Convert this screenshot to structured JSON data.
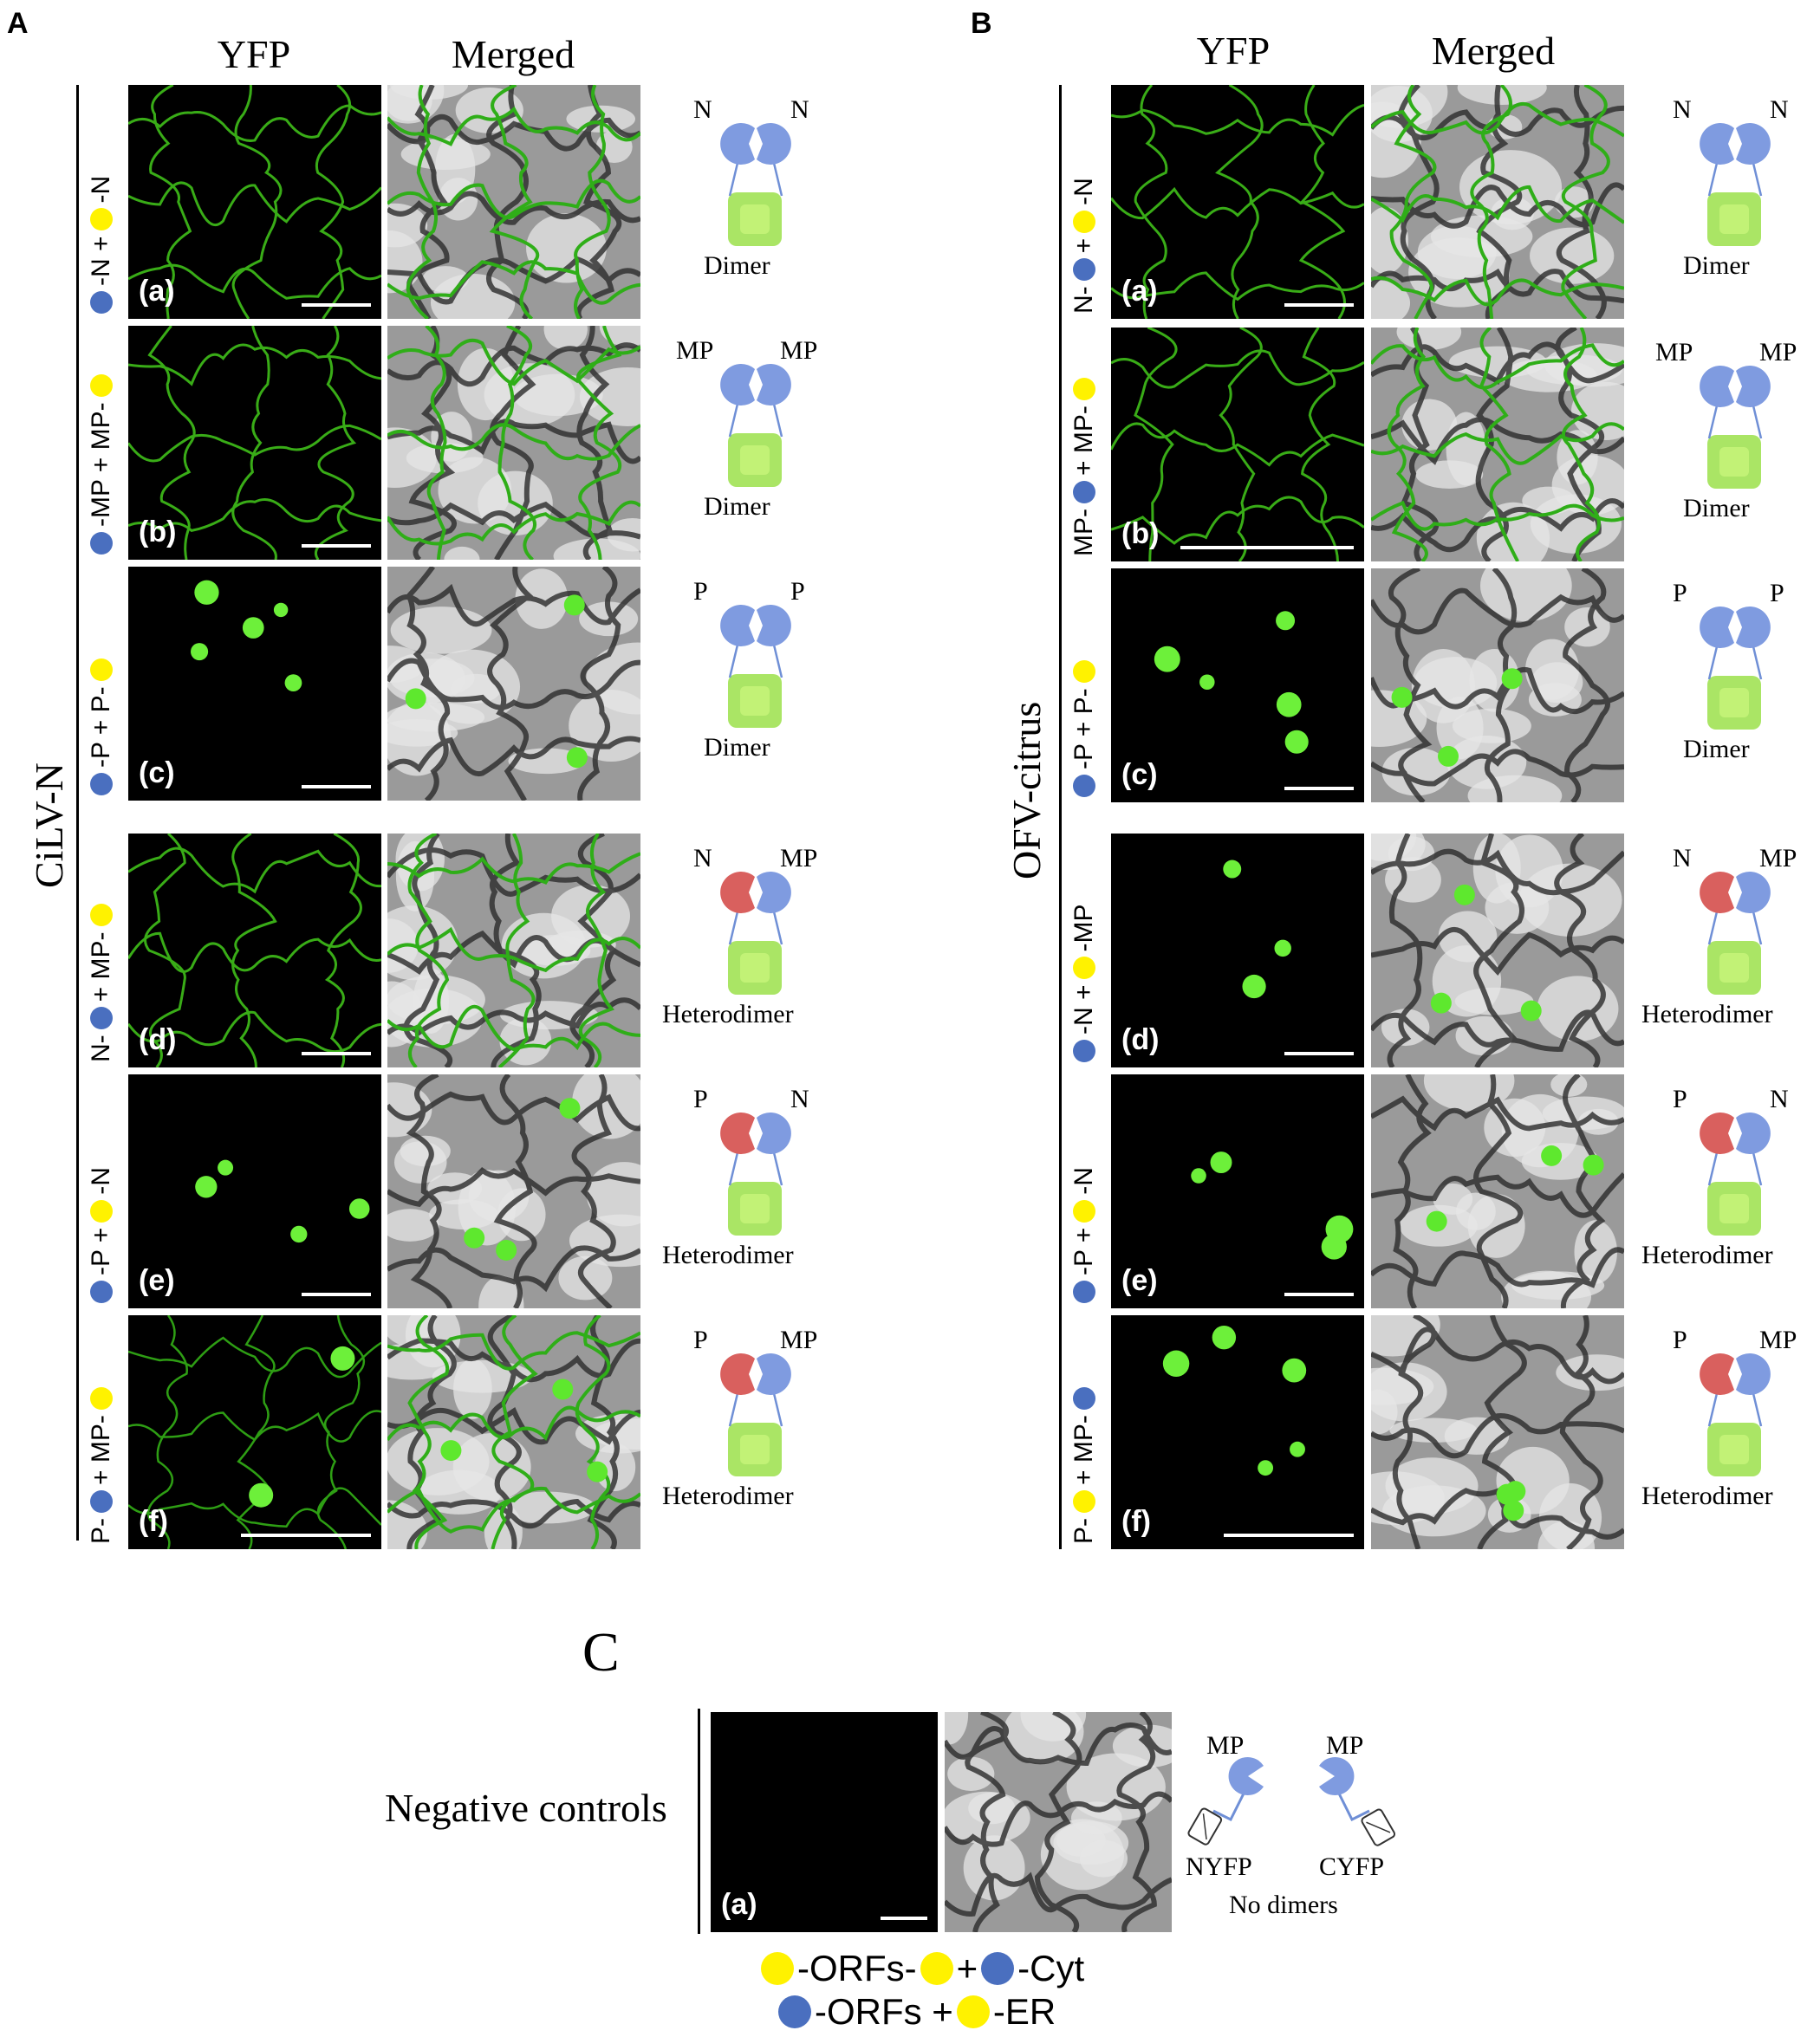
{
  "panels": {
    "A": "A",
    "B": "B",
    "C": "C"
  },
  "headers": {
    "yfp": "YFP",
    "merged": "Merged"
  },
  "side_titles": {
    "A": "CiLV-N",
    "B": "OFV-citrus"
  },
  "sub_labels": [
    "(a)",
    "(b)",
    "(c)",
    "(d)",
    "(e)",
    "(f)"
  ],
  "rowsA": [
    {
      "parts": [
        [
          "b",
          ""
        ],
        [
          "t",
          "-N + "
        ],
        [
          "y",
          ""
        ],
        [
          "t",
          "-N"
        ]
      ]
    },
    {
      "parts": [
        [
          "b",
          ""
        ],
        [
          "t",
          "-MP + MP-"
        ],
        [
          "y",
          ""
        ]
      ]
    },
    {
      "parts": [
        [
          "b",
          ""
        ],
        [
          "t",
          "-P + P-"
        ],
        [
          "y",
          ""
        ]
      ]
    },
    {
      "parts": [
        [
          "t",
          "N-"
        ],
        [
          "b",
          ""
        ],
        [
          "t",
          "+ MP-"
        ],
        [
          "y",
          ""
        ]
      ]
    },
    {
      "parts": [
        [
          "b",
          ""
        ],
        [
          "t",
          "-P + "
        ],
        [
          "y",
          ""
        ],
        [
          "t",
          "-N"
        ]
      ]
    },
    {
      "parts": [
        [
          "t",
          "P-"
        ],
        [
          "b",
          ""
        ],
        [
          "t",
          "+ MP-"
        ],
        [
          "y",
          ""
        ]
      ]
    }
  ],
  "rowsB": [
    {
      "parts": [
        [
          "t",
          "N-"
        ],
        [
          "b",
          ""
        ],
        [
          "t",
          "+ "
        ],
        [
          "y",
          ""
        ],
        [
          "t",
          "-N"
        ]
      ]
    },
    {
      "parts": [
        [
          "t",
          "MP-"
        ],
        [
          "b",
          ""
        ],
        [
          "t",
          "+ MP-"
        ],
        [
          "y",
          ""
        ]
      ]
    },
    {
      "parts": [
        [
          "b",
          ""
        ],
        [
          "t",
          "-P + P-"
        ],
        [
          "y",
          ""
        ]
      ]
    },
    {
      "parts": [
        [
          "b",
          ""
        ],
        [
          "t",
          "-N + "
        ],
        [
          "y",
          ""
        ],
        [
          "t",
          "-MP"
        ]
      ]
    },
    {
      "parts": [
        [
          "b",
          ""
        ],
        [
          "t",
          "-P + "
        ],
        [
          "y",
          ""
        ],
        [
          "t",
          "-N"
        ]
      ]
    },
    {
      "parts": [
        [
          "t",
          "P-"
        ],
        [
          "y",
          ""
        ],
        [
          "t",
          "+ MP-"
        ],
        [
          "b",
          ""
        ]
      ]
    }
  ],
  "schemA": [
    {
      "l": "N",
      "r": "N",
      "type": "Dimer",
      "hetero": false
    },
    {
      "l": "MP",
      "r": "MP",
      "type": "Dimer",
      "hetero": false
    },
    {
      "l": "P",
      "r": "P",
      "type": "Dimer",
      "hetero": false
    },
    {
      "l": "N",
      "r": "MP",
      "type": "Heterodimer",
      "hetero": true
    },
    {
      "l": "P",
      "r": "N",
      "type": "Heterodimer",
      "hetero": true
    },
    {
      "l": "P",
      "r": "MP",
      "type": "Heterodimer",
      "hetero": true
    }
  ],
  "schemB": [
    {
      "l": "N",
      "r": "N",
      "type": "Dimer",
      "hetero": false
    },
    {
      "l": "MP",
      "r": "MP",
      "type": "Dimer",
      "hetero": false
    },
    {
      "l": "P",
      "r": "P",
      "type": "Dimer",
      "hetero": false
    },
    {
      "l": "N",
      "r": "MP",
      "type": "Heterodimer",
      "hetero": true
    },
    {
      "l": "P",
      "r": "N",
      "type": "Heterodimer",
      "hetero": true
    },
    {
      "l": "P",
      "r": "MP",
      "type": "Heterodimer",
      "hetero": true
    }
  ],
  "negative": {
    "title": "Negative controls",
    "sub": "(a)",
    "mp_left": "MP",
    "mp_right": "MP",
    "nyfp": "NYFP",
    "cyfp": "CYFP",
    "result": "No dimers"
  },
  "legend": {
    "line1": [
      [
        "y",
        ""
      ],
      [
        "t",
        "-ORFs-"
      ],
      [
        "y",
        ""
      ],
      [
        "t",
        "+"
      ],
      [
        "b",
        ""
      ],
      [
        "t",
        "-Cyt"
      ]
    ],
    "line2": [
      [
        "b",
        ""
      ],
      [
        "t",
        "-ORFs + "
      ],
      [
        "y",
        ""
      ],
      [
        "t",
        "-ER"
      ]
    ]
  },
  "colors": {
    "blue_dot": "#4a6fbf",
    "yellow_dot": "#fff200",
    "yfp_green": "#55ee22",
    "cap_blue": "#7f9be0",
    "cap_red": "#d9605e"
  }
}
